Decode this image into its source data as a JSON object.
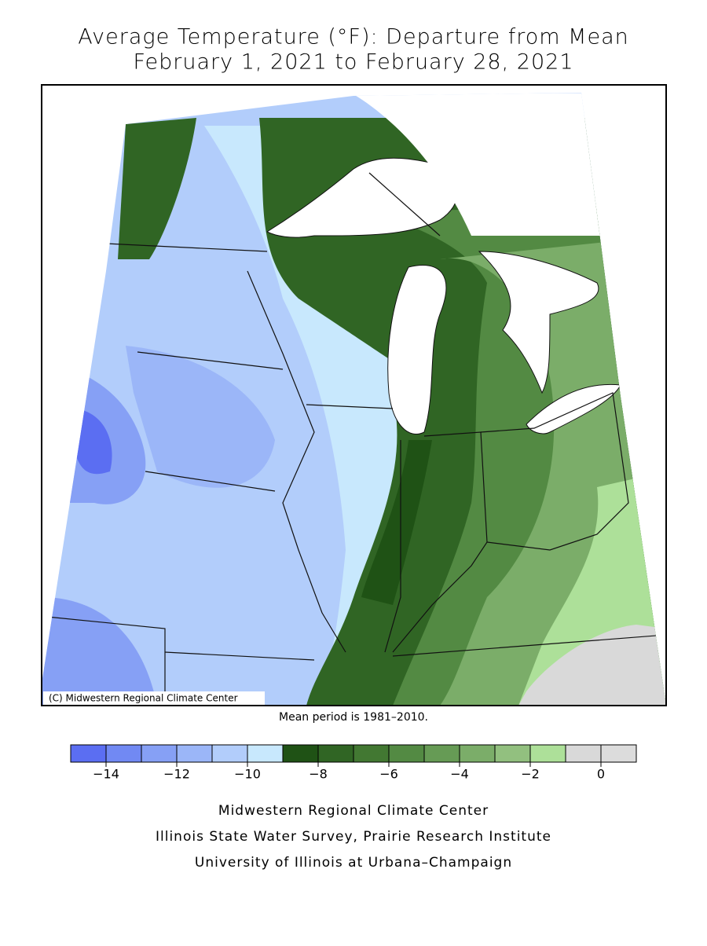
{
  "chart_data": {
    "type": "choropleth-map",
    "title": [
      "Average Temperature (°F): Departure from Mean",
      "February 1, 2021 to February 28, 2021"
    ],
    "credit": "(C) Midwestern Regional Climate Center",
    "note": "Mean period is 1981–2010.",
    "colorbar": {
      "range": [
        -15,
        1
      ],
      "colors": [
        "#5b6ef2",
        "#7189f3",
        "#86a0f5",
        "#9bb6f8",
        "#b2cdfb",
        "#c8e8fd",
        "#1f5215",
        "#306524",
        "#427832",
        "#538a43",
        "#669b55",
        "#7bad69",
        "#92c07f",
        "#ade099",
        "#d9d9d9",
        "#dcdcdc"
      ],
      "ticks": [
        {
          "value": -14,
          "label": "−14"
        },
        {
          "value": -12,
          "label": "−12"
        },
        {
          "value": -10,
          "label": "−10"
        },
        {
          "value": -8,
          "label": "−8"
        },
        {
          "value": -6,
          "label": "−6"
        },
        {
          "value": -4,
          "label": "−4"
        },
        {
          "value": -2,
          "label": "−2"
        },
        0
      ]
    },
    "footer": [
      "Midwestern Regional Climate Center",
      "Illinois State Water Survey, Prairie Research Institute",
      "University of Illinois at Urbana–Champaign"
    ]
  }
}
